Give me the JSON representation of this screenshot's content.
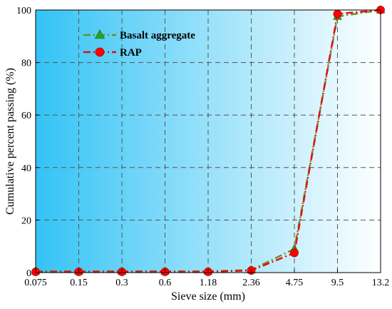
{
  "chart_data": {
    "type": "line",
    "title": "",
    "xlabel": "Sieve size (mm)",
    "ylabel": "Cumulative percent passing (%)",
    "categories": [
      "0.075",
      "0.15",
      "0.3",
      "0.6",
      "1.18",
      "2.36",
      "4.75",
      "9.5",
      "13.2"
    ],
    "ylim": [
      0,
      100
    ],
    "yticks": [
      "0",
      "20",
      "40",
      "60",
      "80",
      "100"
    ],
    "grid": true,
    "legend_position": "top-left",
    "series": [
      {
        "name": "Basalt aggregate",
        "marker": "triangle",
        "color": "#2ca02c",
        "line_color": "#6b8e23",
        "values": [
          0.5,
          0.5,
          0.5,
          0.5,
          0.5,
          1.0,
          9.0,
          97.5,
          100
        ]
      },
      {
        "name": "RAP",
        "marker": "circle",
        "color": "#ff0000",
        "line_color": "#e01010",
        "values": [
          0.3,
          0.3,
          0.3,
          0.3,
          0.3,
          0.8,
          7.5,
          98.5,
          100
        ]
      }
    ],
    "background_gradient": [
      "#33c3f5",
      "#ffffff"
    ]
  }
}
